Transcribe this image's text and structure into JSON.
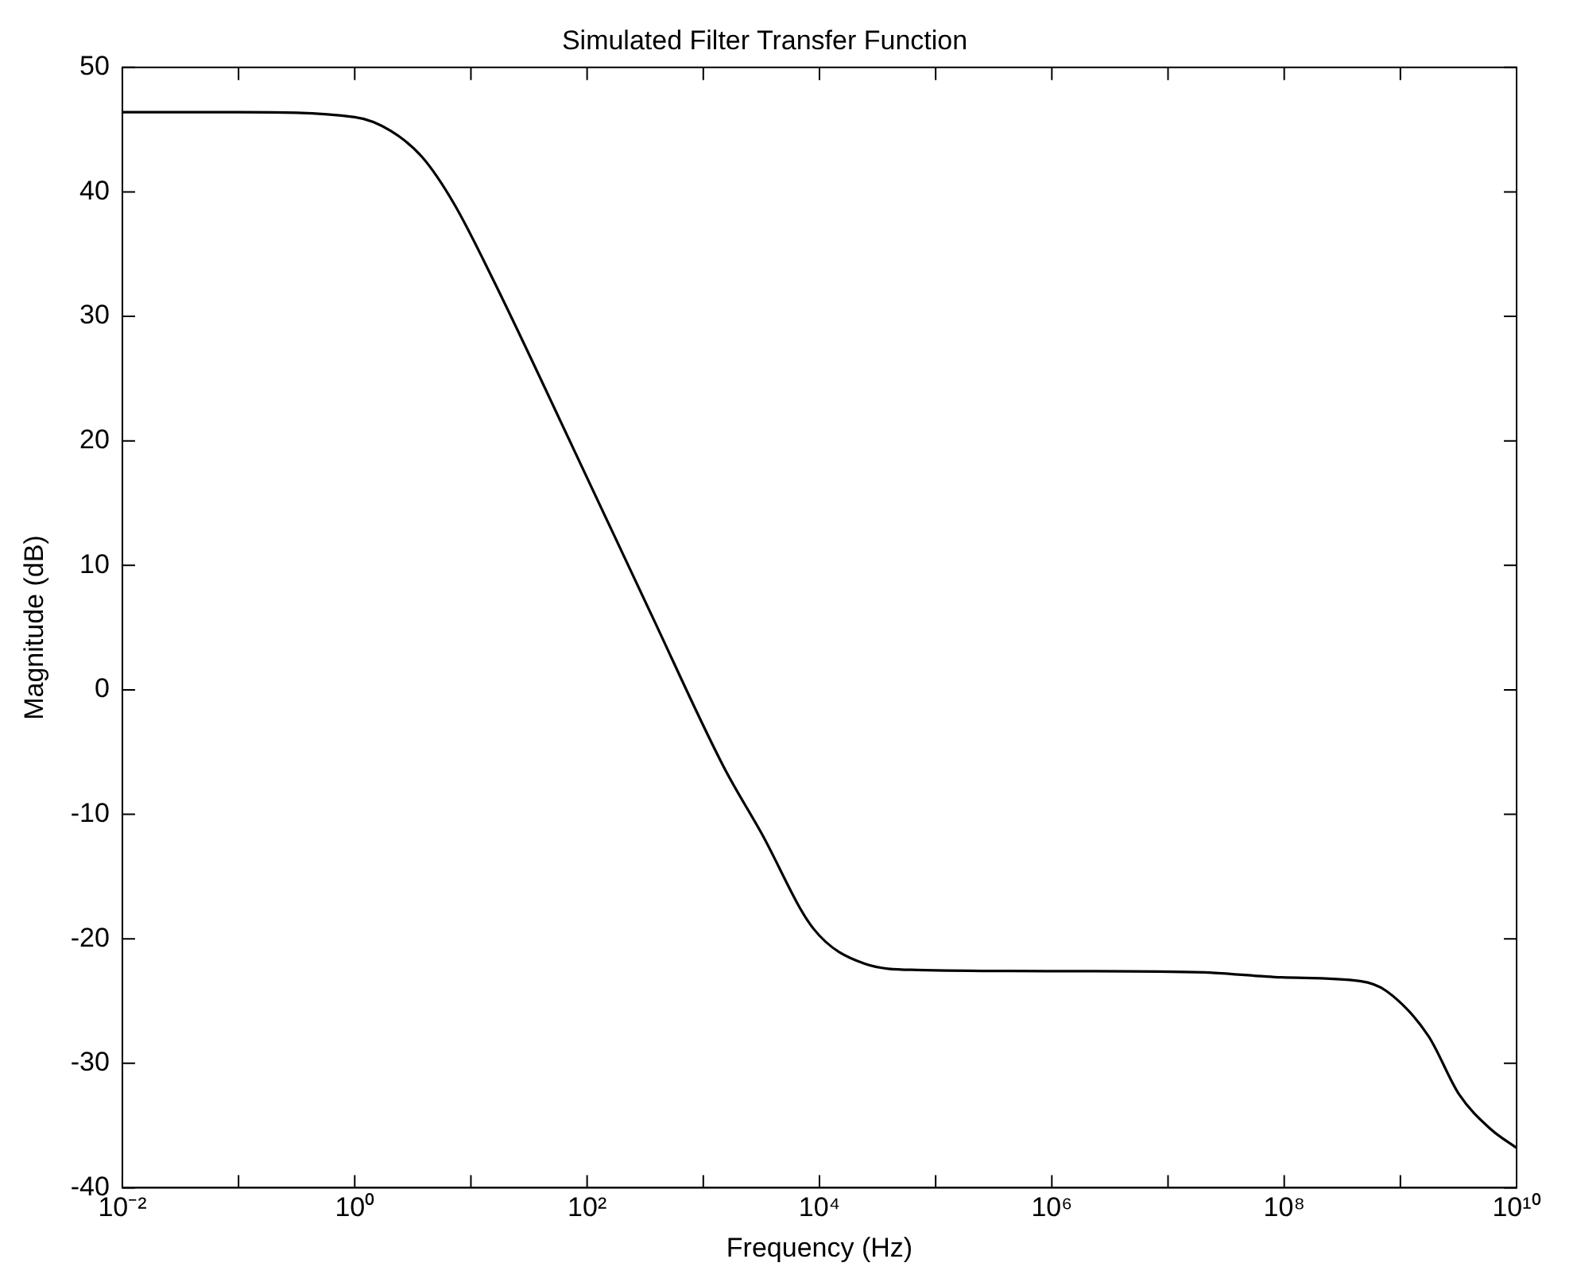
{
  "chart_data": {
    "type": "line",
    "title": "Simulated Filter Transfer Function",
    "xlabel": "Frequency (Hz)",
    "ylabel": "Magnitude (dB)",
    "log": "x",
    "grid": false,
    "legend": false,
    "marker": "none",
    "line_style": "solid",
    "xlim": [
      0.01,
      10000000000
    ],
    "ylim": [
      -40,
      50
    ],
    "xticks": [
      {
        "value": 0.01,
        "label": "10⁻²"
      },
      {
        "value": 0.1,
        "label": null
      },
      {
        "value": 1,
        "label": "10⁰"
      },
      {
        "value": 10,
        "label": null
      },
      {
        "value": 100,
        "label": "10²"
      },
      {
        "value": 1000,
        "label": null
      },
      {
        "value": 10000,
        "label": "10⁴"
      },
      {
        "value": 100000,
        "label": null
      },
      {
        "value": 1000000,
        "label": "10⁶"
      },
      {
        "value": 10000000,
        "label": null
      },
      {
        "value": 100000000,
        "label": "10⁸"
      },
      {
        "value": 1000000000,
        "label": null
      },
      {
        "value": 10000000000,
        "label": "10¹⁰"
      }
    ],
    "yticks": [
      -40,
      -30,
      -20,
      -10,
      0,
      10,
      20,
      30,
      40,
      50
    ],
    "series": [
      {
        "color": "#000000",
        "x": [
          0.01,
          0.1,
          1,
          2.04,
          3.8,
          7.1,
          16,
          76,
          355,
          1500,
          3160,
          8900,
          24500,
          69000,
          1550000,
          20400000,
          95000000,
          450000000,
          760000000,
          1740000000,
          3200000000,
          6000000000,
          10000000000
        ],
        "values": [
          46.4,
          46.4,
          46.0,
          44.9,
          42.8,
          39.1,
          32.7,
          19.4,
          6.1,
          -6.2,
          -11.5,
          -19.2,
          -22.0,
          -22.5,
          -22.6,
          -22.7,
          -23.1,
          -23.4,
          -24.2,
          -27.8,
          -32.5,
          -35.3,
          -36.8
        ]
      }
    ]
  }
}
